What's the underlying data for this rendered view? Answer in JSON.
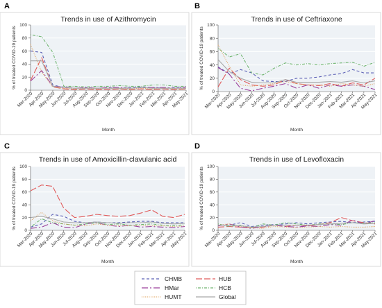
{
  "colors": {
    "CHMB": "#5b5fb5",
    "HUB": "#e05a5a",
    "HMar": "#9a3e9a",
    "HCB": "#6fb56f",
    "HUMT": "#e0a15a",
    "Global": "#a8a8a8",
    "plot_bg": "#eef2f6",
    "grid": "#ffffff",
    "frame": "#ffffff"
  },
  "legend": {
    "entries": [
      {
        "name": "CHMB",
        "dash": "4,3"
      },
      {
        "name": "HUB",
        "dash": "9,3"
      },
      {
        "name": "HMar",
        "dash": "9,3,2,3"
      },
      {
        "name": "HCB",
        "dash": "1,2,4,2"
      },
      {
        "name": "HUMT",
        "dash": "1,1.6"
      },
      {
        "name": "Global",
        "dash": ""
      }
    ]
  },
  "chart_data": [
    {
      "type": "line",
      "panel": "A",
      "title": "Trends in use of  Azithromycin",
      "xlabel": "Month",
      "ylabel": "% of treated COVID-19 patients",
      "ylim": [
        0,
        100
      ],
      "yticks": [
        0,
        20,
        40,
        60,
        80,
        100
      ],
      "grid": true,
      "categories": [
        "Mar-2020",
        "Apr-2020",
        "May-2020",
        "Jun-2020",
        "Jul-2020",
        "Aug-2020",
        "Sep-2020",
        "Oct-2020",
        "Nov-2020",
        "Dec-2020",
        "Jan-2021",
        "Feb-2021",
        "Mar-2021",
        "Apr-2021",
        "May-2021"
      ],
      "series": [
        {
          "name": "CHMB",
          "values": [
            60,
            58,
            8,
            4,
            3,
            4,
            3,
            4,
            3,
            4,
            5,
            4,
            3,
            4,
            3
          ]
        },
        {
          "name": "HUB",
          "values": [
            15,
            50,
            5,
            2,
            1,
            2,
            1,
            1,
            2,
            1,
            2,
            1,
            2,
            1,
            2
          ]
        },
        {
          "name": "HMar",
          "values": [
            14,
            30,
            6,
            5,
            3,
            4,
            3,
            4,
            4,
            3,
            4,
            4,
            4,
            3,
            5
          ]
        },
        {
          "name": "HCB",
          "values": [
            85,
            82,
            58,
            6,
            6,
            5,
            6,
            6,
            7,
            6,
            6,
            8,
            8,
            6,
            6
          ]
        },
        {
          "name": "HUMT",
          "values": [
            70,
            28,
            5,
            3,
            2,
            3,
            2,
            3,
            2,
            2,
            3,
            2,
            3,
            2,
            2
          ]
        },
        {
          "name": "Global",
          "values": [
            45,
            45,
            6,
            4,
            3,
            3,
            3,
            3,
            3,
            3,
            4,
            3,
            3,
            3,
            3
          ]
        }
      ]
    },
    {
      "type": "line",
      "panel": "B",
      "title": "Trends in use of  Ceftriaxone",
      "xlabel": "Month",
      "ylabel": "% of treated COVID-19 patients",
      "ylim": [
        0,
        100
      ],
      "yticks": [
        0,
        20,
        40,
        60,
        80,
        100
      ],
      "grid": true,
      "categories": [
        "Mar-2020",
        "Apr-2020",
        "May-2020",
        "Jun-2020",
        "Jul-2020",
        "Aug-2020",
        "Sep-2020",
        "Oct-2020",
        "Nov-2020",
        "Dec-2020",
        "Jan-2021",
        "Feb-2021",
        "Mar-2021",
        "Apr-2021",
        "May-2021"
      ],
      "series": [
        {
          "name": "CHMB",
          "values": [
            37,
            27,
            33,
            28,
            16,
            15,
            15,
            20,
            20,
            22,
            25,
            27,
            33,
            28,
            28
          ]
        },
        {
          "name": "HUB",
          "values": [
            7,
            35,
            18,
            10,
            8,
            10,
            18,
            12,
            10,
            9,
            12,
            8,
            13,
            10,
            20
          ]
        },
        {
          "name": "HMar",
          "values": [
            36,
            26,
            5,
            1,
            5,
            8,
            12,
            5,
            10,
            5,
            10,
            8,
            10,
            8,
            3
          ]
        },
        {
          "name": "HCB",
          "values": [
            65,
            52,
            57,
            28,
            25,
            35,
            43,
            40,
            42,
            40,
            42,
            43,
            44,
            38,
            44
          ]
        },
        {
          "name": "HUMT",
          "values": [
            70,
            38,
            10,
            8,
            10,
            12,
            15,
            12,
            10,
            10,
            8,
            12,
            10,
            8,
            12
          ]
        },
        {
          "name": "Global",
          "values": [
            48,
            30,
            20,
            14,
            13,
            13,
            18,
            14,
            14,
            14,
            15,
            14,
            16,
            13,
            16
          ]
        }
      ]
    },
    {
      "type": "line",
      "panel": "C",
      "title": "Trends in use of Amoxicillin-clavulanic acid",
      "xlabel": "Month",
      "ylabel": "% of treated COVID-19 patients",
      "ylim": [
        0,
        100
      ],
      "yticks": [
        0,
        20,
        40,
        60,
        80,
        100
      ],
      "grid": true,
      "categories": [
        "Mar-2020",
        "Apr-2020",
        "May-2020",
        "Jun-2020",
        "Jul-2020",
        "Aug-2020",
        "Sep-2020",
        "Oct-2020",
        "Nov-2020",
        "Dec-2020",
        "Jan-2021",
        "Feb-2021",
        "Mar-2021",
        "Apr-2021",
        "May-2021"
      ],
      "series": [
        {
          "name": "CHMB",
          "values": [
            5,
            10,
            25,
            22,
            14,
            12,
            13,
            12,
            12,
            13,
            14,
            14,
            12,
            12,
            12
          ]
        },
        {
          "name": "HUB",
          "values": [
            62,
            71,
            69,
            35,
            20,
            22,
            25,
            23,
            22,
            23,
            27,
            32,
            22,
            20,
            25
          ]
        },
        {
          "name": "HMar",
          "values": [
            3,
            5,
            12,
            5,
            4,
            10,
            12,
            8,
            6,
            8,
            5,
            6,
            5,
            4,
            6
          ]
        },
        {
          "name": "HCB",
          "values": [
            5,
            18,
            12,
            10,
            8,
            10,
            12,
            9,
            10,
            8,
            9,
            10,
            8,
            7,
            9
          ]
        },
        {
          "name": "HUMT",
          "values": [
            15,
            28,
            15,
            10,
            8,
            7,
            10,
            8,
            7,
            7,
            8,
            7,
            7,
            6,
            7
          ]
        },
        {
          "name": "Global",
          "values": [
            20,
            22,
            18,
            13,
            12,
            12,
            13,
            12,
            11,
            12,
            12,
            13,
            11,
            10,
            11
          ]
        }
      ]
    },
    {
      "type": "line",
      "panel": "D",
      "title": "Trends in use of  Levofloxacin",
      "xlabel": "Month",
      "ylabel": "% of treated COVID-19 patients",
      "ylim": [
        0,
        100
      ],
      "yticks": [
        0,
        20,
        40,
        60,
        80,
        100
      ],
      "grid": true,
      "categories": [
        "Mar-2020",
        "Apr-2020",
        "May-2020",
        "Jun-2020",
        "Jul-2020",
        "Aug-2020",
        "Sep-2020",
        "Oct-2020",
        "Nov-2020",
        "Dec-2020",
        "Jan-2021",
        "Feb-2021",
        "Mar-2021",
        "Apr-2021",
        "May-2021"
      ],
      "series": [
        {
          "name": "CHMB",
          "values": [
            8,
            8,
            12,
            6,
            8,
            9,
            10,
            12,
            10,
            12,
            13,
            14,
            12,
            13,
            14
          ]
        },
        {
          "name": "HUB",
          "values": [
            5,
            6,
            5,
            4,
            5,
            8,
            6,
            8,
            7,
            9,
            12,
            20,
            15,
            12,
            10
          ]
        },
        {
          "name": "HMar",
          "values": [
            7,
            10,
            5,
            3,
            6,
            8,
            6,
            5,
            7,
            6,
            9,
            8,
            16,
            10,
            15
          ]
        },
        {
          "name": "HCB",
          "values": [
            10,
            6,
            8,
            4,
            10,
            8,
            12,
            10,
            8,
            10,
            10,
            9,
            12,
            11,
            12
          ]
        },
        {
          "name": "HUMT",
          "values": [
            8,
            10,
            6,
            4,
            3,
            6,
            5,
            4,
            5,
            6,
            5,
            6,
            5,
            5,
            6
          ]
        },
        {
          "name": "Global",
          "values": [
            8,
            8,
            7,
            5,
            6,
            8,
            8,
            8,
            8,
            9,
            10,
            11,
            12,
            10,
            11
          ]
        }
      ]
    }
  ]
}
